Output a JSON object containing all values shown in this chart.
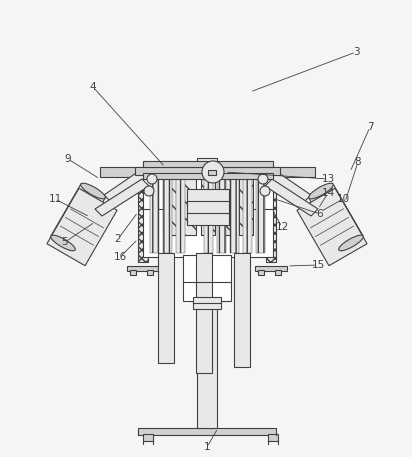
{
  "bg": "#f5f5f5",
  "lc": "#404040",
  "lw": 0.8,
  "white": "#ffffff",
  "lgray": "#e8e8e8",
  "mgray": "#d0d0d0",
  "dgray": "#b0b0b0"
}
